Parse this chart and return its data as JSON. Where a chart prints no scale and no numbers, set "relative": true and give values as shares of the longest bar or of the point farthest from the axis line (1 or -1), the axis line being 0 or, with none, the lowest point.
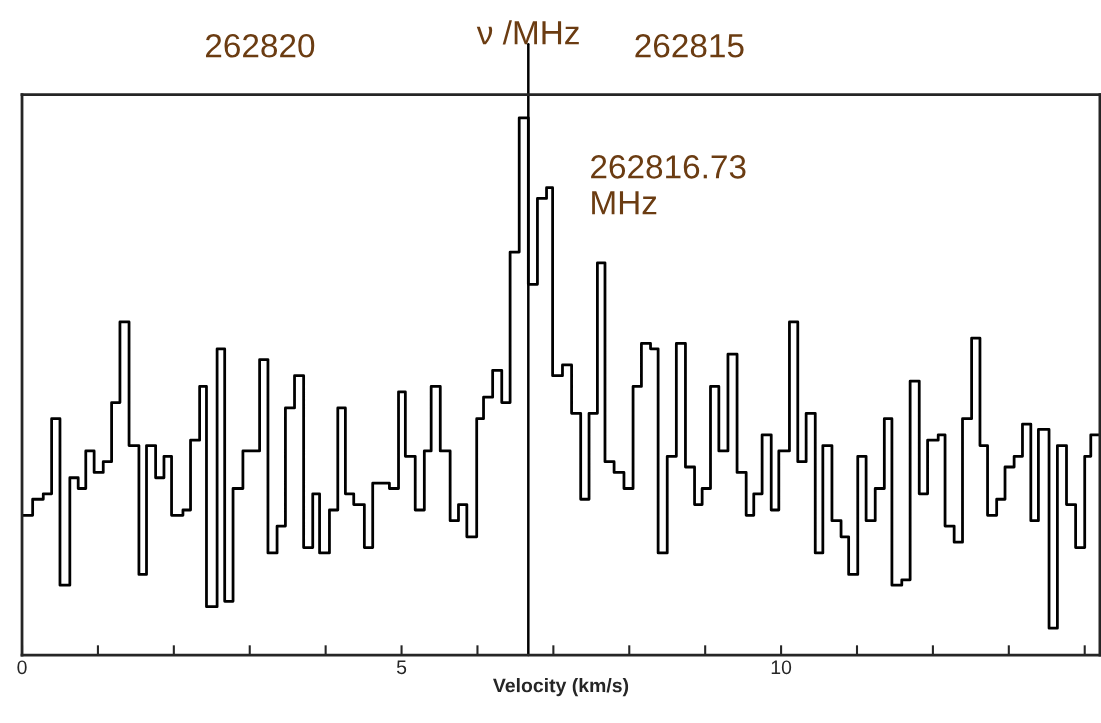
{
  "chart_data": {
    "type": "step",
    "relative": true,
    "xlabel": "Velocity (km/s)",
    "x2label": "ν /MHz",
    "xlim": [
      0,
      14.2
    ],
    "xticks": [
      0,
      {
        "value": 1,
        "label": null
      },
      {
        "value": 2,
        "label": null
      },
      {
        "value": 3,
        "label": null
      },
      {
        "value": 4,
        "label": null
      },
      5,
      {
        "value": 6,
        "label": null
      },
      {
        "value": 7,
        "label": null
      },
      {
        "value": 8,
        "label": null
      },
      {
        "value": 9,
        "label": null
      },
      10,
      {
        "value": 11,
        "label": null
      },
      {
        "value": 12,
        "label": null
      },
      {
        "value": 13,
        "label": null
      },
      {
        "value": 14,
        "label": null
      }
    ],
    "x2lim": [
      262822.77,
      262810.22
    ],
    "x2ticks": [
      262820,
      262815
    ],
    "x": [
      0,
      0.14,
      0.28,
      0.39,
      0.5,
      0.63,
      0.74,
      0.84,
      0.95,
      1.07,
      1.18,
      1.29,
      1.41,
      1.54,
      1.64,
      1.76,
      1.87,
      1.97,
      2.12,
      2.22,
      2.34,
      2.43,
      2.57,
      2.67,
      2.78,
      2.91,
      3.13,
      3.24,
      3.36,
      3.47,
      3.59,
      3.71,
      3.83,
      3.92,
      4.05,
      4.16,
      4.26,
      4.37,
      4.51,
      4.62,
      4.84,
      4.96,
      5.05,
      5.18,
      5.3,
      5.39,
      5.51,
      5.64,
      5.75,
      5.86,
      5.99,
      6.08,
      6.2,
      6.32,
      6.43,
      6.55,
      6.67,
      6.79,
      6.91,
      6.99,
      7.12,
      7.24,
      7.36,
      7.47,
      7.58,
      7.68,
      7.8,
      7.93,
      8.05,
      8.16,
      8.28,
      8.38,
      8.5,
      8.62,
      8.74,
      8.86,
      8.96,
      9.07,
      9.18,
      9.3,
      9.42,
      9.54,
      9.64,
      9.75,
      9.87,
      9.97,
      10.11,
      10.22,
      10.33,
      10.45,
      10.55,
      10.67,
      10.79,
      10.89,
      11.01,
      11.12,
      11.24,
      11.36,
      11.46,
      11.59,
      11.7,
      11.82,
      11.93,
      12.07,
      12.16,
      12.28,
      12.39,
      12.51,
      12.62,
      12.72,
      12.84,
      12.95,
      13.07,
      13.18,
      13.29,
      13.39,
      13.53,
      13.64,
      13.76,
      13.88,
      14.0,
      14.08,
      14.2
    ],
    "series": [
      {
        "color": "#000000",
        "values": [
          0.26,
          0.29,
          0.3,
          0.44,
          0.13,
          0.33,
          0.31,
          0.38,
          0.34,
          0.36,
          0.47,
          0.62,
          0.39,
          0.15,
          0.39,
          0.33,
          0.37,
          0.26,
          0.27,
          0.4,
          0.5,
          0.09,
          0.57,
          0.1,
          0.31,
          0.38,
          0.55,
          0.19,
          0.24,
          0.46,
          0.52,
          0.2,
          0.3,
          0.19,
          0.27,
          0.46,
          0.3,
          0.28,
          0.2,
          0.32,
          0.31,
          0.49,
          0.37,
          0.27,
          0.38,
          0.5,
          0.38,
          0.25,
          0.28,
          0.22,
          0.44,
          0.48,
          0.53,
          0.47,
          0.75,
          1.0,
          0.69,
          0.85,
          0.87,
          0.52,
          0.54,
          0.45,
          0.29,
          0.45,
          0.73,
          0.36,
          0.34,
          0.31,
          0.5,
          0.58,
          0.57,
          0.19,
          0.37,
          0.58,
          0.35,
          0.28,
          0.31,
          0.5,
          0.38,
          0.56,
          0.34,
          0.26,
          0.3,
          0.41,
          0.27,
          0.38,
          0.62,
          0.36,
          0.45,
          0.19,
          0.39,
          0.25,
          0.22,
          0.15,
          0.37,
          0.25,
          0.31,
          0.44,
          0.13,
          0.14,
          0.51,
          0.3,
          0.4,
          0.41,
          0.24,
          0.21,
          0.44,
          0.59,
          0.39,
          0.26,
          0.29,
          0.35,
          0.37,
          0.43,
          0.25,
          0.42,
          0.05,
          0.39,
          0.28,
          0.2,
          0.37,
          0.41,
          0.41
        ]
      }
    ],
    "ref_lines": [
      {
        "axis": "x",
        "value": 6.67,
        "label": "262816.73\nMHz",
        "color": "#000000"
      }
    ],
    "grid": false
  }
}
